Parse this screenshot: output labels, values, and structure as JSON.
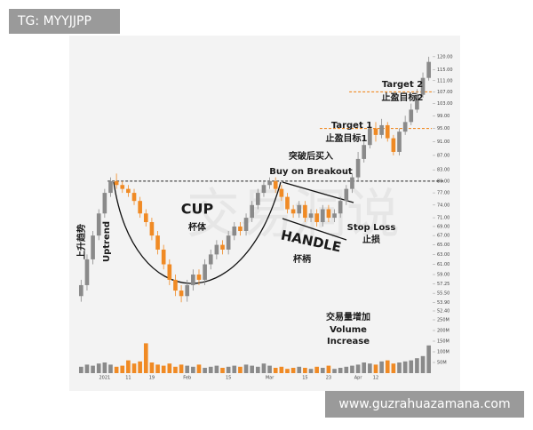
{
  "tag": "TG: MYYJJPP",
  "footer": "www.guzrahuazamana.com",
  "chart_data": {
    "type": "candlestick",
    "log_scale": true,
    "watermark": "交易洞说",
    "up_color": "#8a8a8a",
    "down_color": "#f08a24",
    "categories": [
      null,
      null,
      null,
      null,
      "2021",
      null,
      null,
      null,
      "11",
      null,
      null,
      null,
      "19",
      null,
      null,
      null,
      null,
      null,
      "Feb",
      null,
      null,
      null,
      null,
      null,
      null,
      "15",
      null,
      null,
      null,
      null,
      null,
      null,
      "Mar",
      null,
      null,
      null,
      null,
      null,
      "15",
      null,
      null,
      null,
      "23",
      null,
      null,
      null,
      null,
      "Apr",
      null,
      null,
      "12",
      null,
      null,
      null,
      null,
      null,
      null,
      null,
      null,
      null
    ],
    "open": [
      55,
      57,
      62,
      67,
      72,
      77,
      80,
      79,
      78,
      77,
      75,
      72,
      70,
      67,
      64,
      61,
      58,
      56,
      55,
      57,
      59,
      58,
      61,
      63,
      65,
      64,
      67,
      69,
      68,
      71,
      74,
      77,
      79,
      80,
      78,
      76,
      73,
      72,
      74,
      71,
      72,
      70,
      73,
      71,
      72,
      75,
      78,
      81,
      86,
      90,
      95,
      93,
      96,
      92,
      88,
      94,
      97,
      101,
      106,
      112
    ],
    "high": [
      58,
      63,
      68,
      73,
      78,
      81,
      82,
      80,
      79,
      78,
      76,
      73,
      71,
      68,
      65,
      62,
      59,
      57,
      58,
      60,
      60,
      62,
      64,
      66,
      66,
      68,
      70,
      70,
      72,
      75,
      78,
      80,
      81,
      81,
      79,
      77,
      74,
      75,
      75,
      73,
      73,
      74,
      74,
      73,
      76,
      79,
      82,
      88,
      92,
      97,
      97,
      98,
      97,
      93,
      95,
      99,
      103,
      108,
      114,
      120
    ],
    "low": [
      54,
      56,
      61,
      66,
      71,
      76,
      78,
      77,
      76,
      74,
      71,
      69,
      66,
      63,
      60,
      57,
      55,
      53.9,
      54,
      56,
      57,
      57,
      60,
      62,
      63,
      63,
      66,
      67,
      67,
      70,
      73,
      76,
      78,
      77,
      75,
      72,
      71,
      71,
      70,
      70,
      69,
      69,
      70,
      70,
      71,
      74,
      77,
      80,
      85,
      89,
      91,
      92,
      91,
      87,
      87,
      93,
      96,
      100,
      105,
      111
    ],
    "close": [
      57,
      62,
      67,
      72,
      77,
      80,
      79,
      78,
      77,
      75,
      72,
      70,
      67,
      64,
      61,
      58,
      56,
      55,
      57,
      59,
      58,
      61,
      63,
      65,
      64,
      67,
      69,
      68,
      71,
      74,
      77,
      79,
      80,
      78,
      76,
      73,
      72,
      74,
      71,
      72,
      70,
      73,
      71,
      72,
      75,
      78,
      81,
      86,
      90,
      95,
      93,
      96,
      92,
      88,
      94,
      97,
      101,
      106,
      112,
      118
    ],
    "volume": [
      30,
      40,
      35,
      45,
      50,
      40,
      30,
      35,
      60,
      45,
      55,
      140,
      50,
      40,
      35,
      45,
      30,
      40,
      35,
      30,
      40,
      25,
      30,
      35,
      25,
      30,
      35,
      30,
      40,
      35,
      30,
      45,
      35,
      25,
      30,
      20,
      25,
      30,
      25,
      20,
      30,
      25,
      35,
      20,
      25,
      30,
      35,
      40,
      50,
      45,
      40,
      55,
      60,
      45,
      50,
      55,
      60,
      70,
      80,
      130
    ],
    "ylim": [
      52.4,
      121
    ],
    "yticks": [
      {
        "value": 120,
        "label": "120.00"
      },
      {
        "value": 115,
        "label": "115.00"
      },
      {
        "value": 111,
        "label": "111.00"
      },
      {
        "value": 107,
        "label": "107.00"
      },
      {
        "value": 103,
        "label": "103.00"
      },
      {
        "value": 99,
        "label": "99.00"
      },
      {
        "value": 95,
        "label": "95.00"
      },
      {
        "value": 91,
        "label": "91.00"
      },
      {
        "value": 87,
        "label": "87.00"
      },
      {
        "value": 83,
        "label": "83.00"
      },
      {
        "value": 80,
        "label": "80.00"
      },
      {
        "value": 77,
        "label": "77.00"
      },
      {
        "value": 74,
        "label": "74.00"
      },
      {
        "value": 71,
        "label": "71.00"
      },
      {
        "value": 69,
        "label": "69.00"
      },
      {
        "value": 67,
        "label": "67.00"
      },
      {
        "value": 65,
        "label": "65.00"
      },
      {
        "value": 63,
        "label": "63.00"
      },
      {
        "value": 61,
        "label": "61.00"
      },
      {
        "value": 59,
        "label": "59.00"
      },
      {
        "value": 57.25,
        "label": "57.25"
      },
      {
        "value": 55.5,
        "label": "55.50"
      },
      {
        "value": 53.9,
        "label": "53.90"
      },
      {
        "value": 52.4,
        "label": "52.40"
      }
    ],
    "volume_ylim": [
      0,
      275
    ],
    "volume_yticks": [
      {
        "value": 250,
        "label": "250M"
      },
      {
        "value": 200,
        "label": "200M"
      },
      {
        "value": 150,
        "label": "150M"
      },
      {
        "value": 100,
        "label": "100M"
      },
      {
        "value": 50,
        "label": "50M"
      }
    ],
    "levels": [
      {
        "value": 80,
        "color": "#222222"
      },
      {
        "value": 95,
        "color": "#f08a24"
      },
      {
        "value": 107,
        "color": "#f08a24"
      }
    ],
    "annotations": {
      "breakout_cn": "突破后买入",
      "breakout_en": "Buy on Breakout",
      "cup": "CUP",
      "cup_cn": "杯体",
      "handle": "HANDLE",
      "handle_cn": "杯柄",
      "uptrend_cn": "上升趋势",
      "uptrend_en": "Uptrend",
      "target1": "Target 1",
      "target1_cn": "止盈目标1",
      "target2": "Target 2",
      "target2_cn": "止盈目标2",
      "stop": "Stop Loss",
      "stop_cn": "止损",
      "volume_cn": "交易量增加",
      "volume_en": "Volume",
      "volume_en2": "Increase"
    }
  }
}
